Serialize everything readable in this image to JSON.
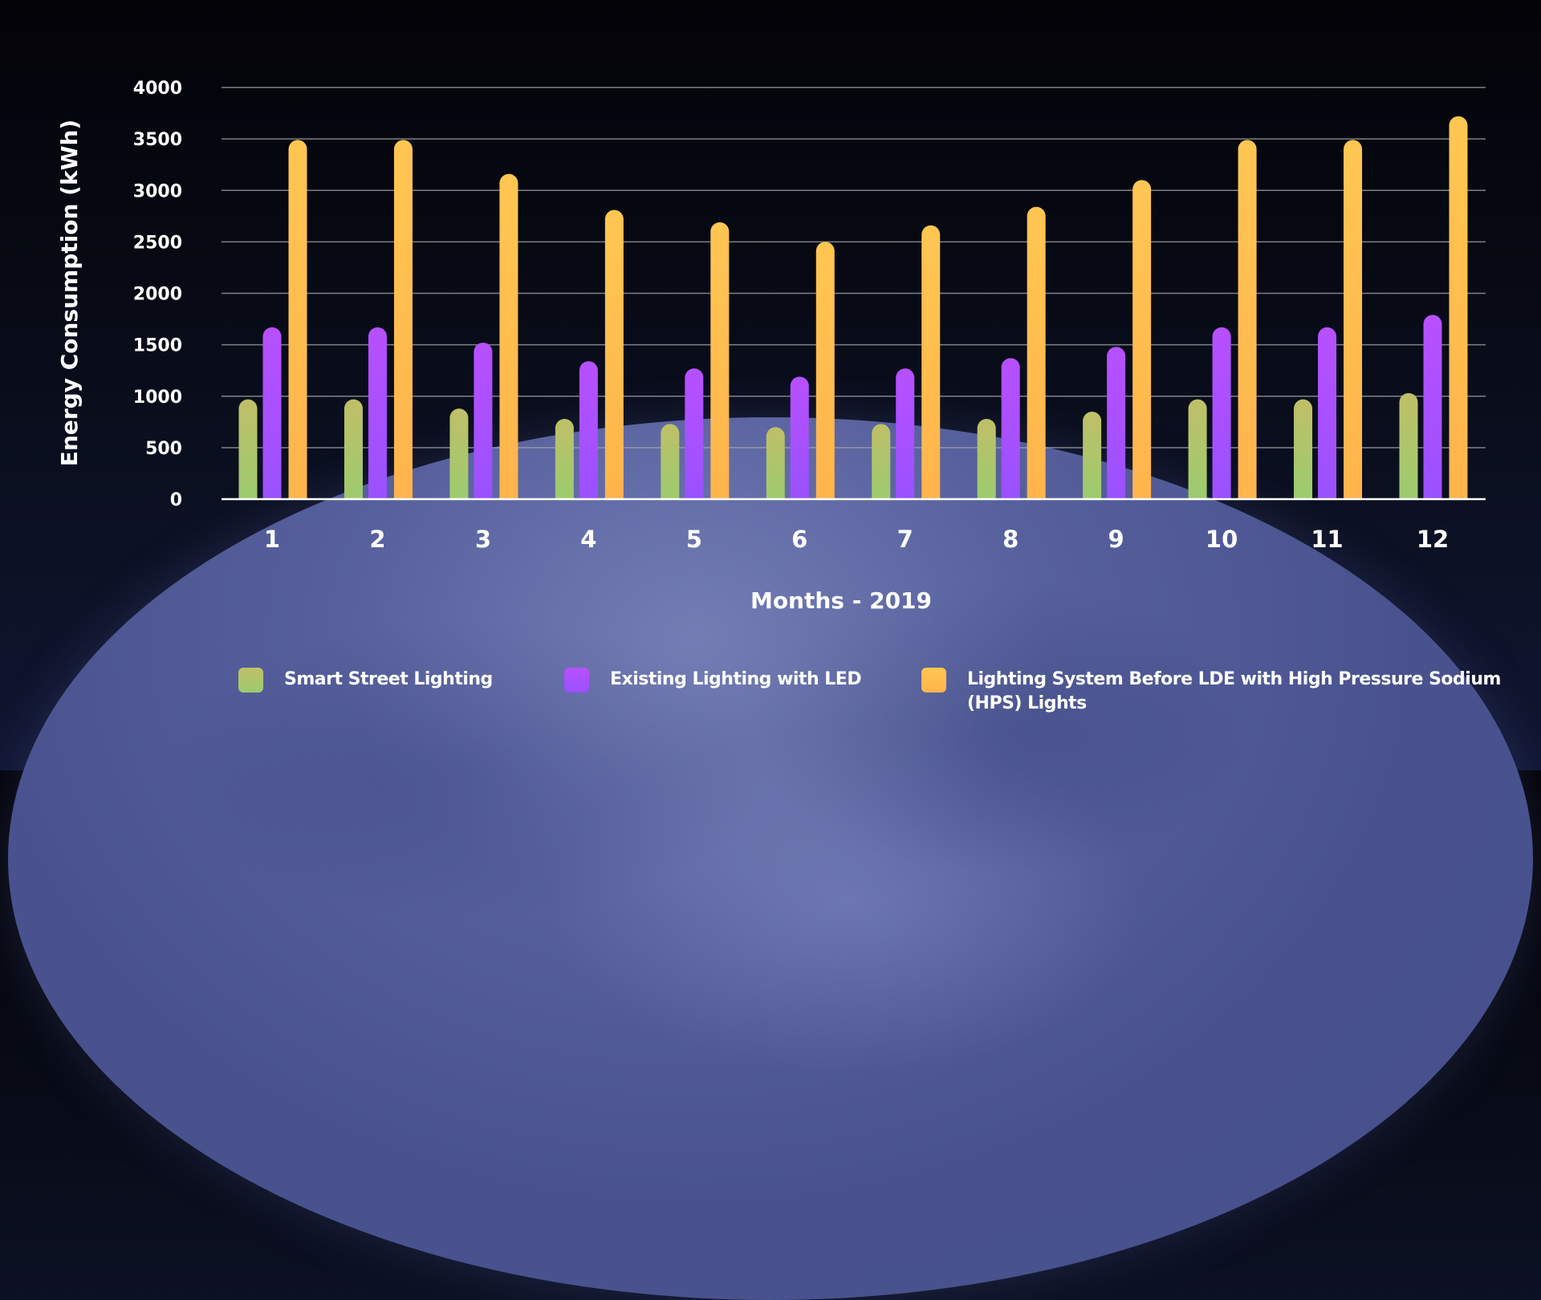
{
  "chart_data": {
    "type": "bar",
    "title": "",
    "xlabel": "Months - 2019",
    "ylabel": "Energy Consumption (kWh)",
    "ylim": [
      0,
      4000
    ],
    "yticks": [
      0,
      500,
      1000,
      1500,
      2000,
      2500,
      3000,
      3500,
      4000
    ],
    "ytick_labels": [
      "0",
      "500",
      "1000",
      "1500",
      "2000",
      "2500",
      "3000",
      "3500",
      "4000"
    ],
    "grid": true,
    "legend_position": "bottom",
    "categories": [
      "1",
      "2",
      "3",
      "4",
      "5",
      "6",
      "7",
      "8",
      "9",
      "10",
      "11",
      "12"
    ],
    "series": [
      {
        "name": "Smart Street Lighting",
        "color": "#9ccb6f",
        "color_top": "#c0bf68",
        "values": [
          970,
          970,
          880,
          780,
          730,
          700,
          730,
          780,
          850,
          970,
          970,
          1030
        ]
      },
      {
        "name": "Existing Lighting with LED",
        "color": "#9a51ff",
        "color_top": "#b850ff",
        "values": [
          1670,
          1670,
          1520,
          1340,
          1270,
          1190,
          1270,
          1370,
          1480,
          1670,
          1670,
          1790
        ]
      },
      {
        "name": "Lighting System Before LDE with High Pressure Sodium (HPS) Lights",
        "color": "#ffb44c",
        "color_top": "#ffc652",
        "values": [
          3490,
          3490,
          3160,
          2810,
          2690,
          2500,
          2660,
          2840,
          3100,
          3490,
          3490,
          3720
        ]
      }
    ]
  },
  "legend": {
    "items": [
      {
        "label": "Smart Street Lighting"
      },
      {
        "label": "Existing Lighting with LED"
      },
      {
        "label_line1": "Lighting System Before LDE with High Pressure Sodium",
        "label_line2": "(HPS) Lights"
      }
    ]
  }
}
